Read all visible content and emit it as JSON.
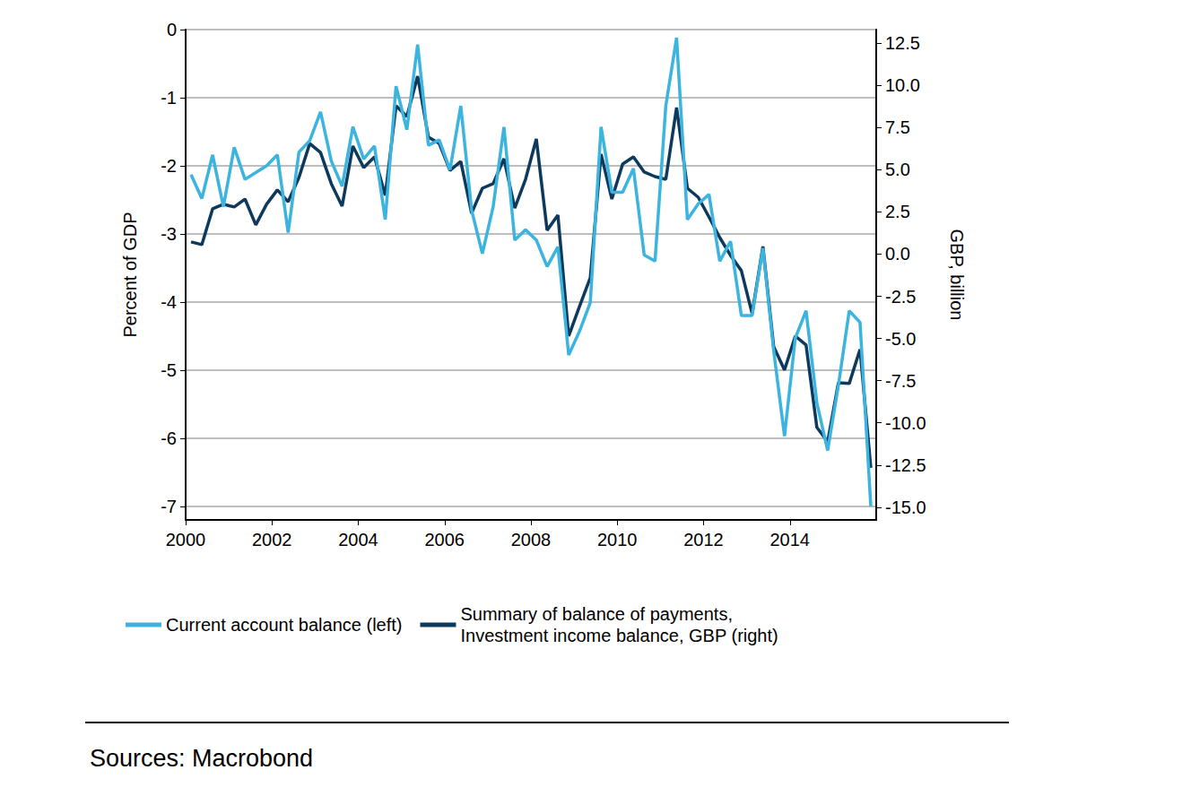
{
  "chart_data": {
    "type": "line",
    "source": "Sources: Macrobond",
    "grid": true,
    "legend": "bottom",
    "xlim": [
      2000,
      2016
    ],
    "xticks": [
      2000,
      2002,
      2004,
      2006,
      2008,
      2010,
      2012,
      2014
    ],
    "ylabel": "Percent of GDP",
    "ylim": [
      -7.2,
      0
    ],
    "yticks": [
      0,
      -1,
      -2,
      -3,
      -4,
      -5,
      -6,
      -7
    ],
    "y2label": "GBP, billion",
    "y2lim": [
      -15.75,
      13.3
    ],
    "y2ticks": [
      12.5,
      {
        "value": 10,
        "label": "10.0"
      },
      7.5,
      {
        "value": 5,
        "label": "5.0"
      },
      2.5,
      {
        "value": 0,
        "label": "0.0"
      },
      -2.5,
      {
        "value": -5,
        "label": "-5.0"
      },
      -7.5,
      {
        "value": -10,
        "label": "-10.0"
      },
      -12.5,
      {
        "value": -15,
        "label": "-15.0"
      }
    ],
    "x": [
      2000.125,
      2000.375,
      2000.625,
      2000.875,
      2001.125,
      2001.375,
      2001.625,
      2001.875,
      2002.125,
      2002.375,
      2002.625,
      2002.875,
      2003.125,
      2003.375,
      2003.625,
      2003.875,
      2004.125,
      2004.375,
      2004.625,
      2004.875,
      2005.125,
      2005.375,
      2005.625,
      2005.875,
      2006.125,
      2006.375,
      2006.625,
      2006.875,
      2007.125,
      2007.375,
      2007.625,
      2007.875,
      2008.125,
      2008.375,
      2008.625,
      2008.875,
      2009.125,
      2009.375,
      2009.625,
      2009.875,
      2010.125,
      2010.375,
      2010.625,
      2010.875,
      2011.125,
      2011.375,
      2011.625,
      2011.875,
      2012.125,
      2012.375,
      2012.625,
      2012.875,
      2013.125,
      2013.375,
      2013.625,
      2013.875,
      2014.125,
      2014.375,
      2014.625,
      2014.875,
      2015.125,
      2015.375,
      2015.625,
      2015.875
    ],
    "series": [
      {
        "name": "Current account balance (left)",
        "color": "#3bb4df",
        "axis": "y",
        "values": [
          -2.13,
          -2.48,
          -1.84,
          -2.6,
          -1.73,
          -2.2,
          -2.1,
          -2.0,
          -1.84,
          -2.98,
          -1.8,
          -1.63,
          -1.21,
          -1.93,
          -2.3,
          -1.43,
          -1.9,
          -1.71,
          -2.79,
          -0.83,
          -1.47,
          -0.22,
          -1.7,
          -1.62,
          -2.06,
          -1.12,
          -2.65,
          -3.29,
          -2.6,
          -1.43,
          -3.09,
          -2.94,
          -3.09,
          -3.48,
          -3.19,
          -4.78,
          -4.43,
          -4.01,
          -1.43,
          -2.39,
          -2.39,
          -2.04,
          -3.31,
          -3.4,
          -1.12,
          -0.12,
          -2.79,
          -2.56,
          -2.42,
          -3.4,
          -3.11,
          -4.2,
          -4.2,
          -3.21,
          -4.72,
          -5.97,
          -4.53,
          -4.13,
          -5.48,
          -6.18,
          -5.22,
          -4.13,
          -4.3,
          -7.0
        ]
      },
      {
        "name": "Summary of balance of payments,\nInvestment income balance, GBP (right)",
        "color": "#0d3a5c",
        "axis": "y2",
        "values": [
          0.72,
          0.56,
          2.68,
          2.95,
          2.79,
          3.26,
          1.73,
          2.95,
          3.8,
          3.1,
          4.54,
          6.55,
          6.02,
          4.17,
          2.84,
          6.4,
          5.12,
          5.76,
          3.48,
          8.78,
          8.15,
          10.54,
          6.93,
          6.55,
          4.96,
          5.49,
          2.42,
          3.9,
          4.17,
          5.65,
          2.73,
          4.43,
          6.82,
          1.41,
          2.31,
          -4.86,
          -3.1,
          -1.41,
          5.92,
          3.26,
          5.33,
          5.76,
          4.86,
          4.59,
          4.43,
          8.68,
          3.9,
          3.37,
          2.2,
          0.98,
          -0.08,
          -0.98,
          -3.53,
          0.45,
          -5.49,
          -6.87,
          -4.86,
          -5.39,
          -10.27,
          -11.12,
          -7.62,
          -7.67,
          -5.65,
          -12.66
        ]
      }
    ]
  }
}
